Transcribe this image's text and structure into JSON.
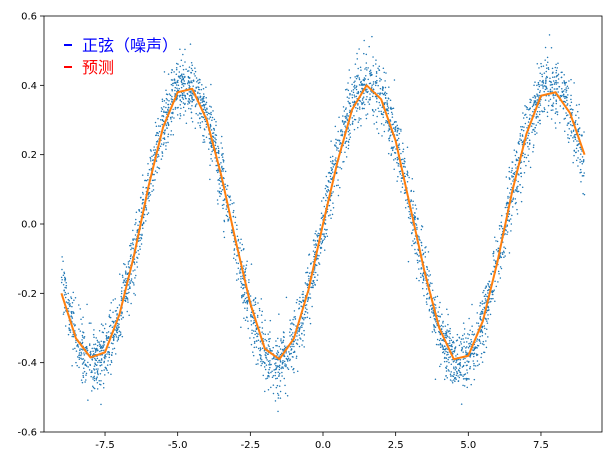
{
  "chart_data": {
    "type": "scatter",
    "title": "",
    "xlabel": "",
    "ylabel": "",
    "xlim": [
      -9.6,
      9.6
    ],
    "ylim": [
      -0.6,
      0.6
    ],
    "x_ticks": [
      -7.5,
      -5.0,
      -2.5,
      0.0,
      2.5,
      5.0,
      7.5
    ],
    "x_tick_labels": [
      "-7.5",
      "-5.0",
      "-2.5",
      "0.0",
      "2.5",
      "5.0",
      "7.5"
    ],
    "y_ticks": [
      -0.6,
      -0.4,
      -0.2,
      0.0,
      0.2,
      0.4,
      0.6
    ],
    "y_tick_labels": [
      "-0.6",
      "-0.4",
      "-0.2",
      "0.0",
      "0.2",
      "0.4",
      "0.6"
    ],
    "grid": false,
    "legend": {
      "placement": "upper-left",
      "entries": [
        {
          "label": "正弦（噪声）",
          "color": "#0000ff"
        },
        {
          "label": "预测",
          "color": "#ff0000"
        }
      ]
    },
    "series": [
      {
        "name": "正弦（噪声）",
        "kind": "scatter",
        "color": "#1f77b4",
        "model": {
          "amplitude": 0.4,
          "frequency": 1.0,
          "phase": 0.0,
          "noise_sd": 0.045,
          "n_points": 4000,
          "x_range": [
            -9.0,
            9.0
          ]
        }
      },
      {
        "name": "预测",
        "kind": "line",
        "color": "#ff7f0e",
        "x": [
          -9.0,
          -8.5,
          -8.0,
          -7.5,
          -7.0,
          -6.5,
          -6.0,
          -5.5,
          -5.0,
          -4.5,
          -4.0,
          -3.5,
          -3.0,
          -2.5,
          -2.0,
          -1.5,
          -1.0,
          -0.5,
          0.0,
          0.5,
          1.0,
          1.5,
          2.0,
          2.5,
          3.0,
          3.5,
          4.0,
          4.5,
          5.0,
          5.5,
          6.0,
          6.5,
          7.0,
          7.5,
          8.0,
          8.5,
          9.0
        ],
        "y": [
          -0.2,
          -0.33,
          -0.385,
          -0.37,
          -0.26,
          -0.09,
          0.11,
          0.28,
          0.38,
          0.39,
          0.3,
          0.14,
          -0.05,
          -0.23,
          -0.36,
          -0.39,
          -0.33,
          -0.19,
          0.0,
          0.18,
          0.33,
          0.4,
          0.36,
          0.24,
          0.05,
          -0.14,
          -0.3,
          -0.39,
          -0.38,
          -0.28,
          -0.11,
          0.09,
          0.26,
          0.37,
          0.38,
          0.32,
          0.2
        ]
      }
    ]
  }
}
